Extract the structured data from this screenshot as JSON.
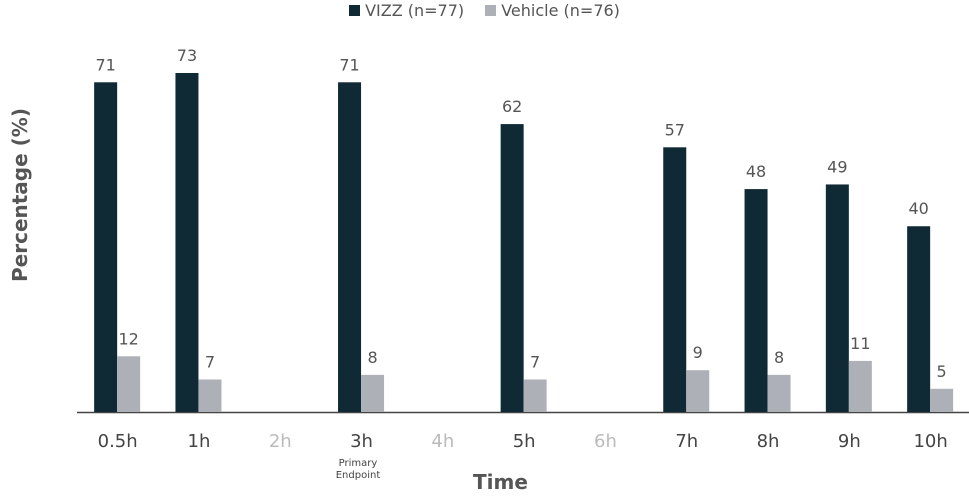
{
  "chart_data": {
    "type": "bar",
    "categories": [
      "0.5h",
      "1h",
      "2h",
      "3h",
      "4h",
      "5h",
      "6h",
      "7h",
      "8h",
      "9h",
      "10h"
    ],
    "series": [
      {
        "name": "VIZZ (n=77)",
        "color": "#0f2a35",
        "values": [
          71,
          73,
          null,
          71,
          null,
          62,
          null,
          57,
          48,
          49,
          40
        ]
      },
      {
        "name": "Vehicle (n=76)",
        "color": "#aeb0b8",
        "values": [
          12,
          7,
          null,
          8,
          null,
          7,
          null,
          9,
          8,
          11,
          5
        ]
      }
    ],
    "data_labels": {
      "VIZZ (n=77)": [
        "71",
        "73",
        "",
        "71",
        "",
        "62",
        "",
        "57",
        "48",
        "49",
        "40"
      ],
      "Vehicle (n=76)": [
        "12",
        "7",
        "",
        "8",
        "",
        "7",
        "",
        "9",
        "8",
        "11",
        "5"
      ]
    },
    "xlabel": "Time",
    "ylabel": "Percentage (%)",
    "ylim": [
      0,
      79
    ],
    "grid": false,
    "legend": "top-center",
    "annotation": {
      "category": "3h",
      "text_line1": "Primary",
      "text_line2": "Endpoint"
    },
    "tick_colors": {
      "active": "#444444",
      "inactive": "#bbbbbb"
    }
  }
}
